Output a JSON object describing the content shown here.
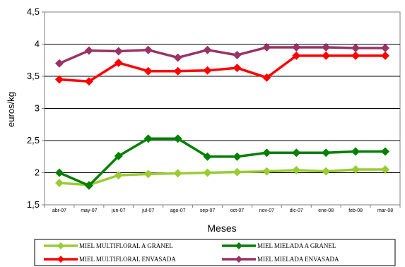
{
  "chart_data": {
    "type": "line",
    "title": "",
    "xlabel": "Meses",
    "ylabel": "euros/kg",
    "categories": [
      "abr-07",
      "may-07",
      "jun-07",
      "jul-07",
      "ago-07",
      "sep-07",
      "oct-07",
      "nov-07",
      "dic-07",
      "ene-08",
      "feb-08",
      "mar-08"
    ],
    "ylim": [
      1.5,
      4.5
    ],
    "yticks": [
      "1,5",
      "2",
      "2,5",
      "3",
      "3,5",
      "4",
      "4,5"
    ],
    "ytick_values": [
      1.5,
      2,
      2.5,
      3,
      3.5,
      4,
      4.5
    ],
    "grid": true,
    "legend_position": "bottom",
    "series": [
      {
        "name": "MIEL MULTIFLORAL A GRANEL",
        "color": "#99cc33",
        "values": [
          1.84,
          1.81,
          1.96,
          1.98,
          1.99,
          2.0,
          2.01,
          2.02,
          2.04,
          2.02,
          2.05,
          2.05
        ]
      },
      {
        "name": "MIEL MIELADA A GRANEL",
        "color": "#008000",
        "values": [
          2.0,
          1.8,
          2.26,
          2.53,
          2.53,
          2.25,
          2.25,
          2.31,
          2.31,
          2.31,
          2.33,
          2.33
        ]
      },
      {
        "name": "MIEL MULTIFLORAL ENVASADA",
        "color": "#ff0000",
        "values": [
          3.45,
          3.42,
          3.71,
          3.58,
          3.58,
          3.59,
          3.63,
          3.48,
          3.82,
          3.82,
          3.82,
          3.82
        ]
      },
      {
        "name": "MIEL MIELADA ENVASADA",
        "color": "#993366",
        "values": [
          3.7,
          3.9,
          3.89,
          3.91,
          3.79,
          3.91,
          3.83,
          3.95,
          3.95,
          3.95,
          3.94,
          3.94
        ]
      }
    ]
  }
}
